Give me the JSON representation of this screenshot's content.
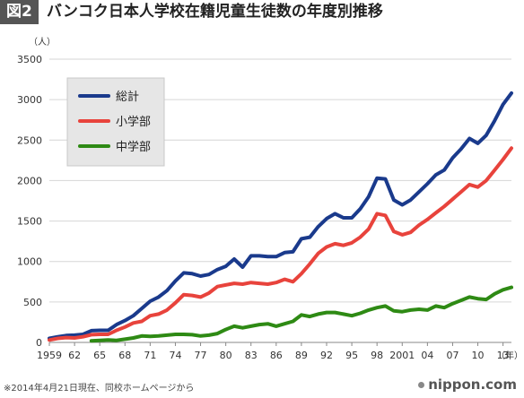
{
  "header": {
    "figure_label": "図2",
    "title": "バンコク日本人学校在籍児童生徒数の年度別推移"
  },
  "footnote": "※2014年4月21日現在、同校ホームページから",
  "brand": "nippon.com",
  "chart_data": {
    "type": "line",
    "title": "バンコク日本人学校在籍児童生徒数の年度別推移",
    "ylabel": "（人）",
    "xlabel": "（年）",
    "ylim": [
      0,
      3500
    ],
    "yticks": [
      0,
      500,
      1000,
      1500,
      2000,
      2500,
      3000,
      3500
    ],
    "xlim": [
      1959,
      2014
    ],
    "xtick_labels": [
      {
        "x": 1959,
        "label": "1959"
      },
      {
        "x": 1962,
        "label": "62"
      },
      {
        "x": 1965,
        "label": "65"
      },
      {
        "x": 1968,
        "label": "68"
      },
      {
        "x": 1971,
        "label": "71"
      },
      {
        "x": 1974,
        "label": "74"
      },
      {
        "x": 1977,
        "label": "77"
      },
      {
        "x": 1980,
        "label": "80"
      },
      {
        "x": 1983,
        "label": "83"
      },
      {
        "x": 1986,
        "label": "86"
      },
      {
        "x": 1989,
        "label": "89"
      },
      {
        "x": 1992,
        "label": "92"
      },
      {
        "x": 1995,
        "label": "95"
      },
      {
        "x": 1998,
        "label": "98"
      },
      {
        "x": 2001,
        "label": "2001"
      },
      {
        "x": 2004,
        "label": "04"
      },
      {
        "x": 2007,
        "label": "07"
      },
      {
        "x": 2010,
        "label": "10"
      },
      {
        "x": 2013,
        "label": "13"
      }
    ],
    "grid": true,
    "legend_position": "top-left",
    "series": [
      {
        "name": "総計",
        "color": "#1a3a8c",
        "points": [
          [
            1959,
            50
          ],
          [
            1960,
            70
          ],
          [
            1961,
            85
          ],
          [
            1962,
            90
          ],
          [
            1963,
            100
          ],
          [
            1964,
            145
          ],
          [
            1965,
            150
          ],
          [
            1966,
            150
          ],
          [
            1967,
            220
          ],
          [
            1968,
            270
          ],
          [
            1969,
            330
          ],
          [
            1970,
            420
          ],
          [
            1971,
            510
          ],
          [
            1972,
            560
          ],
          [
            1973,
            640
          ],
          [
            1974,
            760
          ],
          [
            1975,
            860
          ],
          [
            1976,
            850
          ],
          [
            1977,
            820
          ],
          [
            1978,
            840
          ],
          [
            1979,
            900
          ],
          [
            1980,
            940
          ],
          [
            1981,
            1030
          ],
          [
            1982,
            930
          ],
          [
            1983,
            1070
          ],
          [
            1984,
            1070
          ],
          [
            1985,
            1060
          ],
          [
            1986,
            1060
          ],
          [
            1987,
            1110
          ],
          [
            1988,
            1120
          ],
          [
            1989,
            1280
          ],
          [
            1990,
            1300
          ],
          [
            1991,
            1430
          ],
          [
            1992,
            1530
          ],
          [
            1993,
            1590
          ],
          [
            1994,
            1540
          ],
          [
            1995,
            1540
          ],
          [
            1996,
            1650
          ],
          [
            1997,
            1800
          ],
          [
            1998,
            2030
          ],
          [
            1999,
            2020
          ],
          [
            2000,
            1760
          ],
          [
            2001,
            1700
          ],
          [
            2002,
            1760
          ],
          [
            2003,
            1860
          ],
          [
            2004,
            1960
          ],
          [
            2005,
            2070
          ],
          [
            2006,
            2130
          ],
          [
            2007,
            2280
          ],
          [
            2008,
            2390
          ],
          [
            2009,
            2520
          ],
          [
            2010,
            2460
          ],
          [
            2011,
            2560
          ],
          [
            2012,
            2740
          ],
          [
            2013,
            2940
          ],
          [
            2014,
            3080
          ]
        ]
      },
      {
        "name": "小学部",
        "color": "#e8433c",
        "points": [
          [
            1959,
            30
          ],
          [
            1960,
            50
          ],
          [
            1961,
            60
          ],
          [
            1962,
            55
          ],
          [
            1963,
            70
          ],
          [
            1964,
            95
          ],
          [
            1965,
            100
          ],
          [
            1966,
            100
          ],
          [
            1967,
            150
          ],
          [
            1968,
            190
          ],
          [
            1969,
            240
          ],
          [
            1970,
            260
          ],
          [
            1971,
            330
          ],
          [
            1972,
            350
          ],
          [
            1973,
            400
          ],
          [
            1974,
            490
          ],
          [
            1975,
            590
          ],
          [
            1976,
            580
          ],
          [
            1977,
            560
          ],
          [
            1978,
            610
          ],
          [
            1979,
            690
          ],
          [
            1980,
            710
          ],
          [
            1981,
            730
          ],
          [
            1982,
            720
          ],
          [
            1983,
            740
          ],
          [
            1984,
            730
          ],
          [
            1985,
            720
          ],
          [
            1986,
            740
          ],
          [
            1987,
            780
          ],
          [
            1988,
            750
          ],
          [
            1989,
            850
          ],
          [
            1990,
            970
          ],
          [
            1991,
            1100
          ],
          [
            1992,
            1180
          ],
          [
            1993,
            1220
          ],
          [
            1994,
            1200
          ],
          [
            1995,
            1230
          ],
          [
            1996,
            1300
          ],
          [
            1997,
            1400
          ],
          [
            1998,
            1590
          ],
          [
            1999,
            1570
          ],
          [
            2000,
            1370
          ],
          [
            2001,
            1330
          ],
          [
            2002,
            1360
          ],
          [
            2003,
            1450
          ],
          [
            2004,
            1520
          ],
          [
            2005,
            1600
          ],
          [
            2006,
            1680
          ],
          [
            2007,
            1770
          ],
          [
            2008,
            1860
          ],
          [
            2009,
            1950
          ],
          [
            2010,
            1920
          ],
          [
            2011,
            2000
          ],
          [
            2012,
            2130
          ],
          [
            2013,
            2260
          ],
          [
            2014,
            2400
          ]
        ]
      },
      {
        "name": "中学部",
        "color": "#2e8a14",
        "points": [
          [
            1964,
            20
          ],
          [
            1965,
            25
          ],
          [
            1966,
            30
          ],
          [
            1967,
            25
          ],
          [
            1968,
            40
          ],
          [
            1969,
            55
          ],
          [
            1970,
            80
          ],
          [
            1971,
            75
          ],
          [
            1972,
            80
          ],
          [
            1973,
            90
          ],
          [
            1974,
            100
          ],
          [
            1975,
            100
          ],
          [
            1976,
            95
          ],
          [
            1977,
            80
          ],
          [
            1978,
            90
          ],
          [
            1979,
            110
          ],
          [
            1980,
            160
          ],
          [
            1981,
            200
          ],
          [
            1982,
            180
          ],
          [
            1983,
            200
          ],
          [
            1984,
            220
          ],
          [
            1985,
            230
          ],
          [
            1986,
            200
          ],
          [
            1987,
            230
          ],
          [
            1988,
            260
          ],
          [
            1989,
            340
          ],
          [
            1990,
            320
          ],
          [
            1991,
            350
          ],
          [
            1992,
            370
          ],
          [
            1993,
            370
          ],
          [
            1994,
            350
          ],
          [
            1995,
            330
          ],
          [
            1996,
            360
          ],
          [
            1997,
            400
          ],
          [
            1998,
            430
          ],
          [
            1999,
            450
          ],
          [
            2000,
            390
          ],
          [
            2001,
            380
          ],
          [
            2002,
            400
          ],
          [
            2003,
            410
          ],
          [
            2004,
            400
          ],
          [
            2005,
            450
          ],
          [
            2006,
            430
          ],
          [
            2007,
            480
          ],
          [
            2008,
            520
          ],
          [
            2009,
            560
          ],
          [
            2010,
            540
          ],
          [
            2011,
            530
          ],
          [
            2012,
            600
          ],
          [
            2013,
            650
          ],
          [
            2014,
            680
          ]
        ]
      }
    ]
  }
}
